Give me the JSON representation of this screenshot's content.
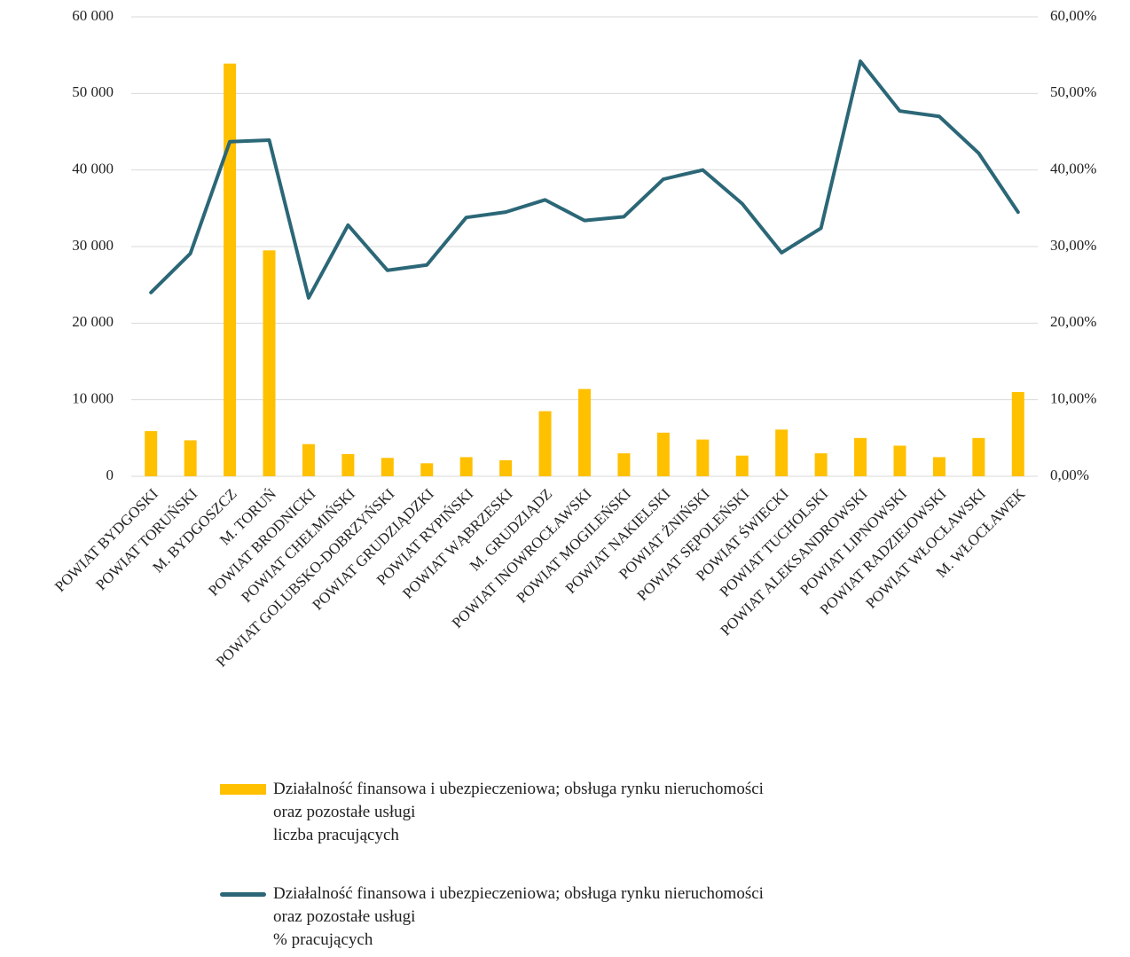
{
  "chart_data": {
    "type": "bar-line",
    "categories": [
      "POWIAT BYDGOSKI",
      "POWIAT TORUŃSKI",
      "M. BYDGOSZCZ",
      "M. TORUŃ",
      "POWIAT BRODNICKI",
      "POWIAT CHEŁMIŃSKI",
      "POWIAT GOLUBSKO-DOBRZYŃSKI",
      "POWIAT GRUDZIĄDZKI",
      "POWIAT RYPIŃSKI",
      "POWIAT WĄBRZESKI",
      "M. GRUDZIĄDZ",
      "POWIAT INOWROCŁAWSKI",
      "POWIAT MOGILEŃSKI",
      "POWIAT NAKIELSKI",
      "POWIAT ŻNIŃSKI",
      "POWIAT SĘPOLEŃSKI",
      "POWIAT ŚWIECKI",
      "POWIAT TUCHOLSKI",
      "POWIAT ALEKSANDROWSKI",
      "POWIAT LIPNOWSKI",
      "POWIAT RADZIEJOWSKI",
      "POWIAT WŁOCŁAWSKI",
      "M. WŁOCŁAWEK"
    ],
    "series": [
      {
        "name": "Działalność finansowa i ubezpieczeniowa; obsługa rynku nieruchomości\noraz pozostałe usługi\n liczba pracujących",
        "type": "bar",
        "color": "#FFC000",
        "values": [
          5900,
          4700,
          53900,
          29500,
          4200,
          2900,
          2400,
          1700,
          2500,
          2100,
          8500,
          11400,
          3000,
          5700,
          4800,
          2700,
          6100,
          3000,
          5000,
          4000,
          2500,
          5000,
          11000
        ]
      },
      {
        "name": "Działalność finansowa i ubezpieczeniowa; obsługa rynku nieruchomości\noraz pozostałe usługi\n % pracujących",
        "type": "line",
        "axis": "y2",
        "color": "#2B6777",
        "values": [
          24.0,
          29.1,
          43.7,
          43.9,
          23.3,
          32.8,
          26.9,
          27.6,
          33.8,
          34.5,
          36.1,
          33.4,
          33.9,
          38.8,
          40.0,
          35.6,
          29.2,
          32.4,
          54.2,
          47.7,
          47.0,
          42.2,
          34.5
        ]
      }
    ],
    "ylim": [
      0,
      60000
    ],
    "yticks": [
      {
        "value": 0,
        "label": "0"
      },
      {
        "value": 10000,
        "label": "10 000"
      },
      {
        "value": 20000,
        "label": "20 000"
      },
      {
        "value": 30000,
        "label": "30 000"
      },
      {
        "value": 40000,
        "label": "40 000"
      },
      {
        "value": 50000,
        "label": "50 000"
      },
      {
        "value": 60000,
        "label": "60 000"
      }
    ],
    "y2lim": [
      0,
      60
    ],
    "y2ticks": [
      {
        "value": 0,
        "label": "0,00%"
      },
      {
        "value": 10,
        "label": "10,00%"
      },
      {
        "value": 20,
        "label": "20,00%"
      },
      {
        "value": 30,
        "label": "30,00%"
      },
      {
        "value": 40,
        "label": "40,00%"
      },
      {
        "value": 50,
        "label": "50,00%"
      },
      {
        "value": 60,
        "label": "60,00%"
      }
    ],
    "grid": true,
    "legend": "bottom"
  }
}
